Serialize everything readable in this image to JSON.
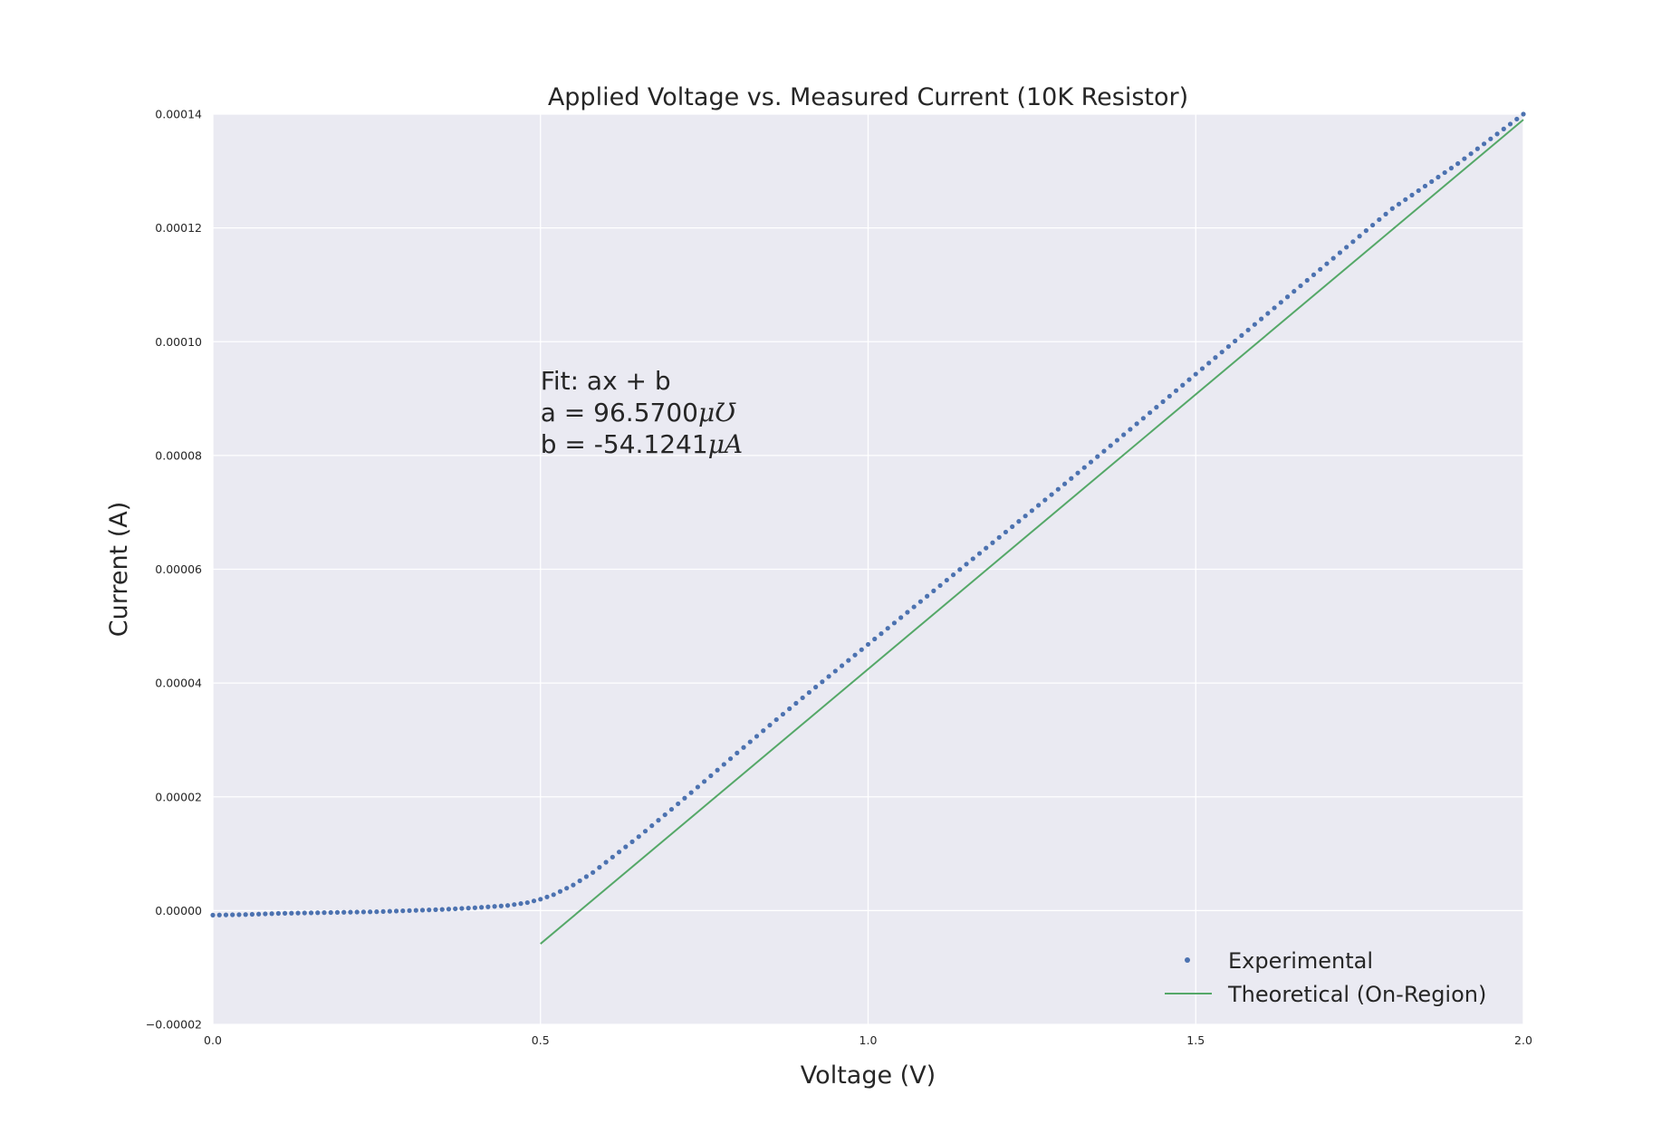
{
  "chart_data": {
    "type": "scatter",
    "title": "Applied Voltage vs. Measured Current (10K Resistor)",
    "xlabel": "Voltage (V)",
    "ylabel": "Current (A)",
    "xlim": [
      0.0,
      2.0
    ],
    "ylim": [
      -2e-05,
      0.00014
    ],
    "x_ticks": [
      "0.0",
      "0.5",
      "1.0",
      "1.5",
      "2.0"
    ],
    "y_ticks": [
      "−0.00002",
      "0.00000",
      "0.00002",
      "0.00004",
      "0.00006",
      "0.00008",
      "0.00010",
      "0.00012",
      "0.00014"
    ],
    "grid": true,
    "legend_position": "lower-right",
    "series": [
      {
        "name": "Experimental",
        "kind": "markers",
        "color": "#4c72b0",
        "x": [
          0.0,
          0.05,
          0.1,
          0.15,
          0.2,
          0.25,
          0.3,
          0.35,
          0.4,
          0.45,
          0.48,
          0.5,
          0.52,
          0.55,
          0.58,
          0.6,
          0.65,
          0.7,
          0.75,
          0.8,
          0.85,
          0.9,
          0.95,
          1.0,
          1.1,
          1.2,
          1.3,
          1.4,
          1.5,
          1.6,
          1.7,
          1.8,
          1.9,
          2.0
        ],
        "y": [
          -8e-07,
          -7e-07,
          -5e-07,
          -4e-07,
          -3e-07,
          -2e-07,
          0.0,
          2e-07,
          5e-07,
          9e-07,
          1.4e-06,
          2e-06,
          2.8e-06,
          4.5e-06,
          6.7e-06,
          8.5e-06,
          1.3e-05,
          1.78e-05,
          2.27e-05,
          2.77e-05,
          3.26e-05,
          3.74e-05,
          4.21e-05,
          4.68e-05,
          5.62e-05,
          6.56e-05,
          7.5e-05,
          8.46e-05,
          9.43e-05,
          0.000104,
          0.0001137,
          0.0001234,
          0.0001313,
          0.00014
        ]
      },
      {
        "name": "Theoretical (On-Region)",
        "kind": "line",
        "color": "#55a868",
        "x": [
          0.5,
          2.0
        ],
        "y": [
          -5.84e-06,
          0.00013902
        ]
      }
    ],
    "annotation": {
      "lines": [
        {
          "text": "Fit: ax + b",
          "unit": ""
        },
        {
          "text": "a = 96.5700",
          "unit": "μƱ"
        },
        {
          "text": "b = -54.1241",
          "unit": "μA"
        }
      ]
    },
    "colors": {
      "plot_bg": "#eaeaf2",
      "grid": "#ffffff",
      "text": "#262626"
    }
  }
}
